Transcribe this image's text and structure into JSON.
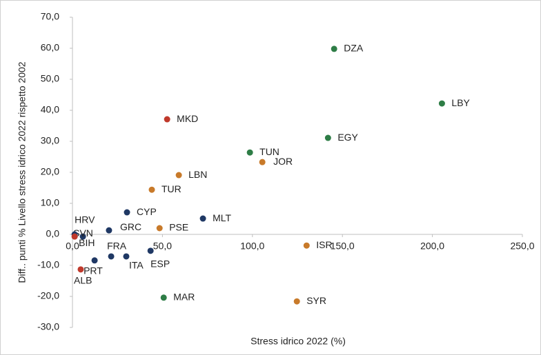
{
  "chart_data": {
    "type": "scatter",
    "xlabel": "Stress idrico 2022 (%)",
    "ylabel": "Diff.. punti % Livello stress idrico 2022 rispetto 2002",
    "xlim": [
      0,
      250
    ],
    "ylim": [
      -30,
      70
    ],
    "xticks": [
      {
        "value": 0,
        "label": "0,0"
      },
      {
        "value": 50,
        "label": "50,0"
      },
      {
        "value": 100,
        "label": "100,0"
      },
      {
        "value": 150,
        "label": "150,0"
      },
      {
        "value": 200,
        "label": "200,0"
      },
      {
        "value": 250,
        "label": "250,0"
      }
    ],
    "yticks": [
      {
        "value": -30,
        "label": "-30,0"
      },
      {
        "value": -20,
        "label": "-20,0"
      },
      {
        "value": -10,
        "label": "-10,0"
      },
      {
        "value": 0,
        "label": "0,0"
      },
      {
        "value": 10,
        "label": "10,0"
      },
      {
        "value": 20,
        "label": "20,0"
      },
      {
        "value": 30,
        "label": "30,0"
      },
      {
        "value": 40,
        "label": "40,0"
      },
      {
        "value": 50,
        "label": "50,0"
      },
      {
        "value": 60,
        "label": "60,0"
      },
      {
        "value": 70,
        "label": "70,0"
      }
    ],
    "points": [
      {
        "label": "DZA",
        "x": 145.4,
        "y": 59.8,
        "color": "#2e7d46"
      },
      {
        "label": "LBY",
        "x": 205.3,
        "y": 42.2,
        "color": "#2e7d46"
      },
      {
        "label": "EGY",
        "x": 142.0,
        "y": 31.1,
        "color": "#2e7d46"
      },
      {
        "label": "MKD",
        "x": 52.6,
        "y": 37.1,
        "color": "#c0392b"
      },
      {
        "label": "TUN",
        "x": 98.6,
        "y": 26.4,
        "color": "#2e7d46"
      },
      {
        "label": "JOR",
        "x": 105.5,
        "y": 23.3,
        "color": "#c87a2a"
      },
      {
        "label": "LBN",
        "x": 59.1,
        "y": 19.1,
        "color": "#c87a2a"
      },
      {
        "label": "TUR",
        "x": 44.1,
        "y": 14.4,
        "color": "#c87a2a"
      },
      {
        "label": "CYP",
        "x": 30.3,
        "y": 7.1,
        "color": "#1f3864"
      },
      {
        "label": "MLT",
        "x": 72.5,
        "y": 5.1,
        "color": "#1f3864"
      },
      {
        "label": "PSE",
        "x": 48.4,
        "y": 2.0,
        "color": "#c87a2a"
      },
      {
        "label": "GRC",
        "x": 20.3,
        "y": 1.3,
        "color": "#1f3864"
      },
      {
        "label": "SVN",
        "x": 5.8,
        "y": -0.7,
        "color": "#1f3864"
      },
      {
        "label": "HRV",
        "x": 1.2,
        "y": 0.0,
        "color": "#1f3864"
      },
      {
        "label": "BIH",
        "x": 1.2,
        "y": -0.7,
        "color": "#c0392b"
      },
      {
        "label": "ALB",
        "x": 4.6,
        "y": -11.3,
        "color": "#c0392b"
      },
      {
        "label": "PRT",
        "x": 12.3,
        "y": -8.4,
        "color": "#1f3864"
      },
      {
        "label": "FRA",
        "x": 21.5,
        "y": -7.1,
        "color": "#1f3864"
      },
      {
        "label": "ITA",
        "x": 29.9,
        "y": -7.1,
        "color": "#1f3864"
      },
      {
        "label": "ESP",
        "x": 43.4,
        "y": -5.3,
        "color": "#1f3864"
      },
      {
        "label": "MAR",
        "x": 50.7,
        "y": -20.4,
        "color": "#2e7d46"
      },
      {
        "label": "SYR",
        "x": 124.7,
        "y": -21.6,
        "color": "#c87a2a"
      },
      {
        "label": "ISR",
        "x": 130.1,
        "y": -3.6,
        "color": "#c87a2a"
      }
    ]
  }
}
